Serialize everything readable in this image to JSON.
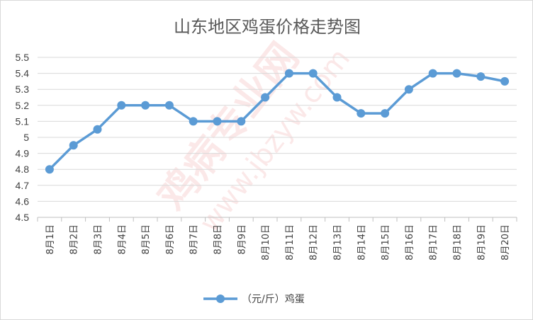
{
  "chart_data": {
    "type": "line",
    "title": "山东地区鸡蛋价格走势图",
    "xlabel": "",
    "ylabel": "",
    "categories": [
      "8月1日",
      "8月2日",
      "8月3日",
      "8月4日",
      "8月5日",
      "8月6日",
      "8月7日",
      "8月8日",
      "8月9日",
      "8月10日",
      "8月11日",
      "8月12日",
      "8月13日",
      "8月14日",
      "8月15日",
      "8月16日",
      "8月17日",
      "8月18日",
      "8月19日",
      "8月20日"
    ],
    "series": [
      {
        "name": "（元/斤）鸡蛋",
        "values": [
          4.8,
          4.95,
          5.05,
          5.2,
          5.2,
          5.2,
          5.1,
          5.1,
          5.1,
          5.25,
          5.4,
          5.4,
          5.25,
          5.15,
          5.15,
          5.3,
          5.4,
          5.4,
          5.38,
          5.35
        ],
        "color": "#5b9bd5"
      }
    ],
    "ylim": [
      4.5,
      5.5
    ],
    "yticks": [
      "4.5",
      "4.6",
      "4.7",
      "4.8",
      "4.9",
      "5",
      "5.1",
      "5.2",
      "5.3",
      "5.4",
      "5.5"
    ],
    "grid": true,
    "legend_position": "bottom"
  },
  "watermark": {
    "text_cn": "鸡病专业网",
    "text_url": "www.jbzyw.com"
  }
}
